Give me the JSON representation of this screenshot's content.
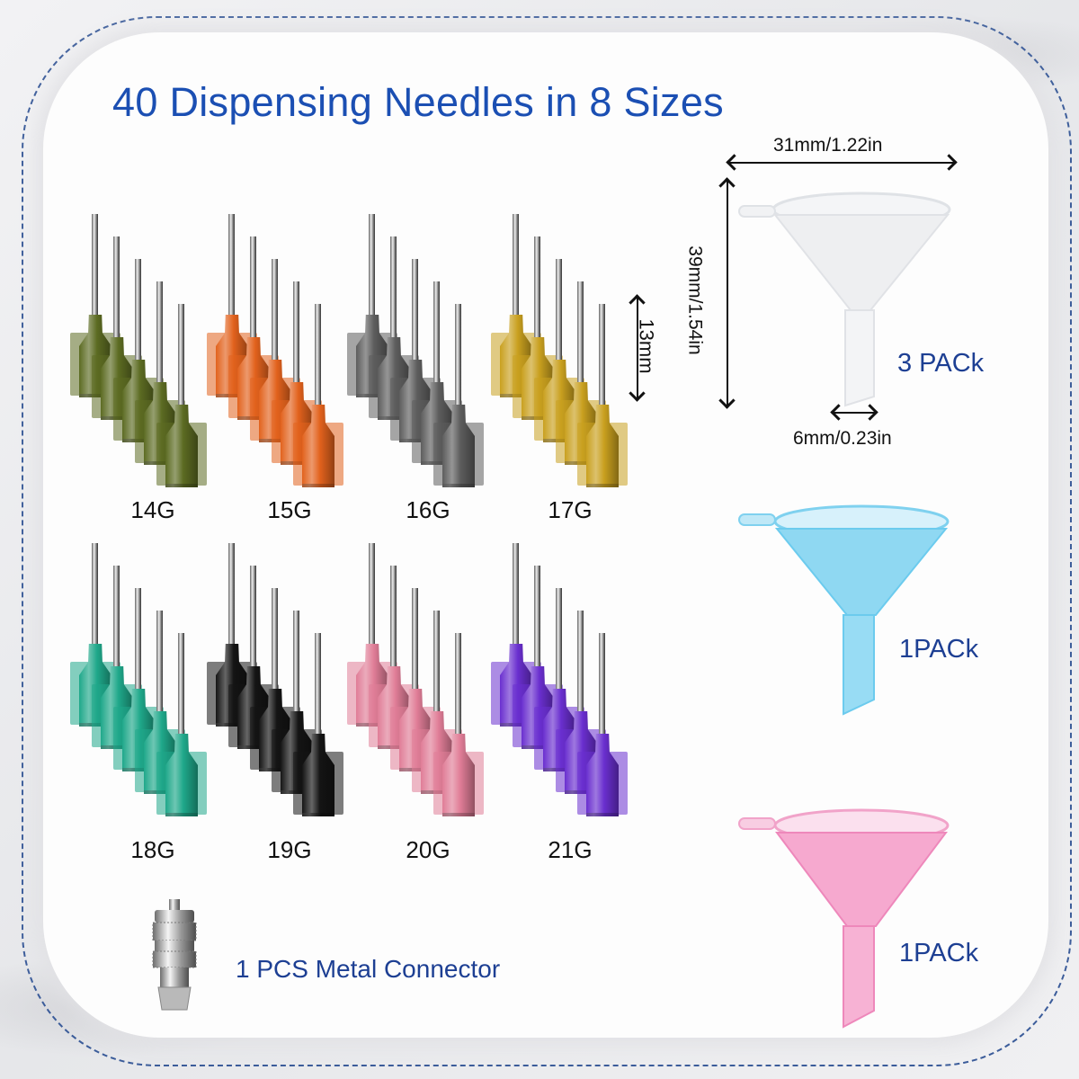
{
  "title": "40 Dispensing Needles in 8 Sizes",
  "needle_sets": [
    {
      "gauge": "14G",
      "color": "#5c6b22",
      "row": 0,
      "col": 0
    },
    {
      "gauge": "15G",
      "color": "#e2621d",
      "row": 0,
      "col": 1
    },
    {
      "gauge": "16G",
      "color": "#5d5d5d",
      "row": 0,
      "col": 2
    },
    {
      "gauge": "17G",
      "color": "#c9a01f",
      "row": 0,
      "col": 3
    },
    {
      "gauge": "18G",
      "color": "#1fa88a",
      "row": 1,
      "col": 0
    },
    {
      "gauge": "19G",
      "color": "#141414",
      "row": 1,
      "col": 1
    },
    {
      "gauge": "20G",
      "color": "#e07d97",
      "row": 1,
      "col": 2
    },
    {
      "gauge": "21G",
      "color": "#6a2fcf",
      "row": 1,
      "col": 3
    }
  ],
  "needle_length_label": "13mm",
  "funnel_dimensions": {
    "width": "31mm/1.22in",
    "height": "39mm/1.54in",
    "spout": "6mm/0.23in"
  },
  "funnels": [
    {
      "color": "clear",
      "fill": "#f2f4f6",
      "stroke": "#dde0e4",
      "pack": "3 PACk"
    },
    {
      "color": "blue",
      "fill": "#8fd8f2",
      "stroke": "#5cc4ea",
      "pack": "1PACk"
    },
    {
      "color": "pink",
      "fill": "#f6a9cf",
      "stroke": "#ee88bb",
      "pack": "1PACk"
    }
  ],
  "connector": {
    "label": "1 PCS Metal Connector"
  },
  "colors": {
    "title": "#1b4fb3",
    "pack_label": "#1d3f93",
    "frame_dash": "#3b5c9a"
  }
}
